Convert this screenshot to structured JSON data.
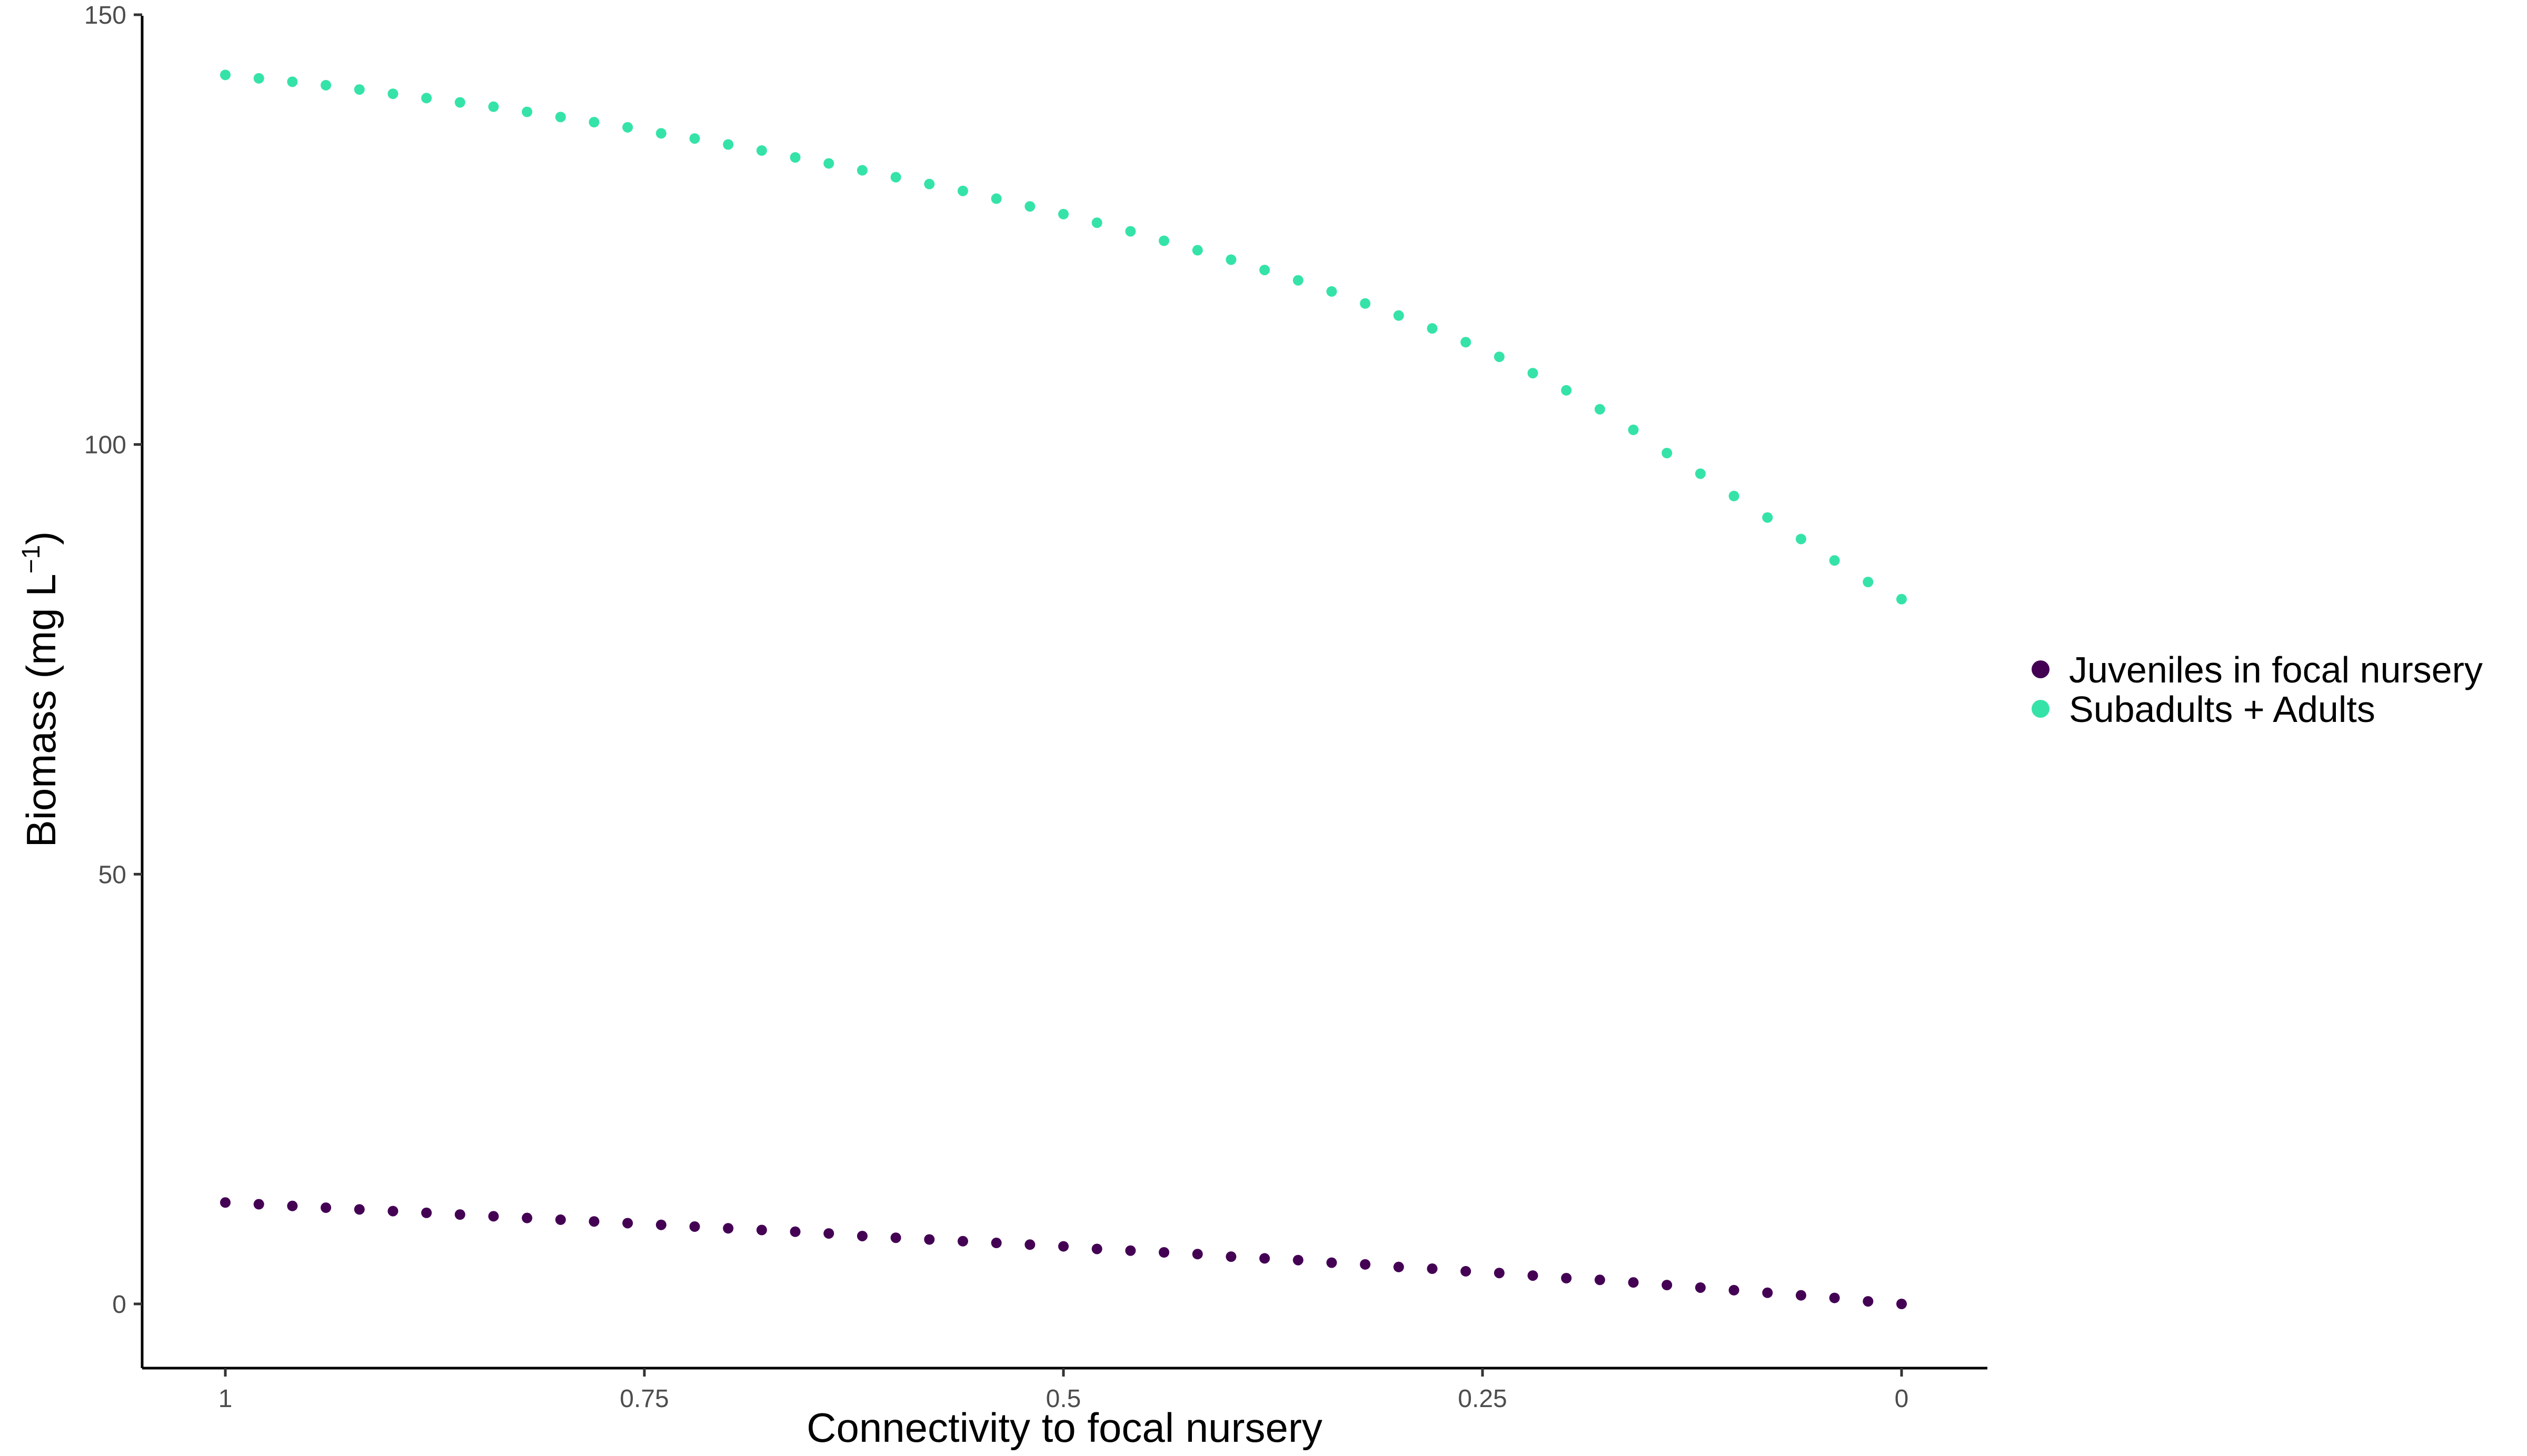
{
  "chart_data": {
    "type": "scatter",
    "xlabel": "Connectivity to focal nursery",
    "ylabel": "Biomass (mg L",
    "ylabel_sup": "−1",
    "ylabel_close": ")",
    "x_reversed": true,
    "xlim": [
      1,
      0
    ],
    "ylim": [
      -7,
      150
    ],
    "x_ticks": [
      1,
      0.75,
      0.5,
      0.25,
      0
    ],
    "x_tick_labels": [
      "1",
      "0.75",
      "0.5",
      "0.25",
      "0"
    ],
    "y_ticks": [
      0,
      50,
      100,
      150
    ],
    "y_tick_labels": [
      "0",
      "50",
      "100",
      "150"
    ],
    "grid": false,
    "legend_position": "right",
    "series": [
      {
        "name": "Juveniles in focal nursery",
        "color": "#440154",
        "x": [
          1,
          0.98,
          0.96,
          0.94,
          0.92,
          0.9,
          0.88,
          0.86,
          0.84,
          0.82,
          0.8,
          0.78,
          0.76,
          0.74,
          0.72,
          0.7,
          0.68,
          0.66,
          0.64,
          0.62,
          0.6,
          0.58,
          0.56,
          0.54,
          0.52,
          0.5,
          0.48,
          0.46,
          0.44,
          0.42,
          0.4,
          0.38,
          0.36,
          0.34,
          0.32,
          0.3,
          0.28,
          0.26,
          0.24,
          0.22,
          0.2,
          0.18,
          0.16,
          0.14,
          0.12,
          0.1,
          0.08,
          0.06,
          0.04,
          0.02,
          0
        ],
        "y": [
          11.8,
          11.6,
          11.4,
          11.2,
          11.0,
          10.8,
          10.6,
          10.4,
          10.2,
          10.0,
          9.8,
          9.6,
          9.4,
          9.2,
          9.0,
          8.8,
          8.6,
          8.4,
          8.2,
          7.9,
          7.7,
          7.5,
          7.3,
          7.1,
          6.9,
          6.7,
          6.4,
          6.2,
          6.0,
          5.8,
          5.5,
          5.3,
          5.1,
          4.8,
          4.6,
          4.3,
          4.1,
          3.8,
          3.6,
          3.3,
          3.0,
          2.8,
          2.5,
          2.2,
          1.9,
          1.6,
          1.3,
          1.0,
          0.7,
          0.3,
          0.0
        ]
      },
      {
        "name": "Subadults + Adults",
        "color": "#35E3A8",
        "x": [
          1,
          0.98,
          0.96,
          0.94,
          0.92,
          0.9,
          0.88,
          0.86,
          0.84,
          0.82,
          0.8,
          0.78,
          0.76,
          0.74,
          0.72,
          0.7,
          0.68,
          0.66,
          0.64,
          0.62,
          0.6,
          0.58,
          0.56,
          0.54,
          0.52,
          0.5,
          0.48,
          0.46,
          0.44,
          0.42,
          0.4,
          0.38,
          0.36,
          0.34,
          0.32,
          0.3,
          0.28,
          0.26,
          0.24,
          0.22,
          0.2,
          0.18,
          0.16,
          0.14,
          0.12,
          0.1,
          0.08,
          0.06,
          0.04,
          0.02,
          0
        ],
        "y": [
          143.0,
          142.6,
          142.2,
          141.8,
          141.3,
          140.8,
          140.3,
          139.8,
          139.3,
          138.7,
          138.1,
          137.5,
          136.9,
          136.2,
          135.6,
          134.9,
          134.2,
          133.4,
          132.7,
          131.9,
          131.1,
          130.3,
          129.5,
          128.6,
          127.7,
          126.8,
          125.8,
          124.8,
          123.7,
          122.6,
          121.5,
          120.3,
          119.1,
          117.8,
          116.4,
          115.0,
          113.5,
          111.9,
          110.2,
          108.3,
          106.3,
          104.1,
          101.7,
          99.0,
          96.6,
          94.0,
          91.5,
          89.0,
          86.5,
          84.0,
          82.0
        ]
      }
    ]
  }
}
